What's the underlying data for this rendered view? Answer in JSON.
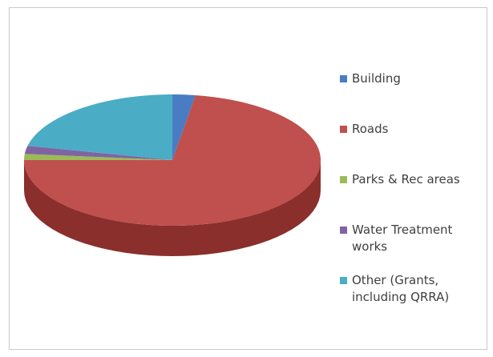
{
  "chart_data": {
    "type": "pie",
    "style": "3d",
    "title": "",
    "legend_position": "right",
    "categories": [
      "Building",
      "Roads",
      "Parks & Rec areas",
      "Water Treatment works",
      "Other (Grants, including QRRA)"
    ],
    "values": [
      2.5,
      72.5,
      1.5,
      2.0,
      21.5
    ],
    "colors": [
      "#4a7cc4",
      "#c0504d",
      "#9bbb59",
      "#8064a2",
      "#4bacc6"
    ],
    "side_colors": [
      "#335a92",
      "#8a2f2c",
      "#6e8a39",
      "#5a4475",
      "#2f7c91"
    ],
    "legend_lines": [
      [
        "Building"
      ],
      [
        "Roads"
      ],
      [
        "Parks & Rec areas"
      ],
      [
        "Water Treatment",
        "works"
      ],
      [
        "Other (Grants,",
        "including QRRA)"
      ]
    ]
  }
}
